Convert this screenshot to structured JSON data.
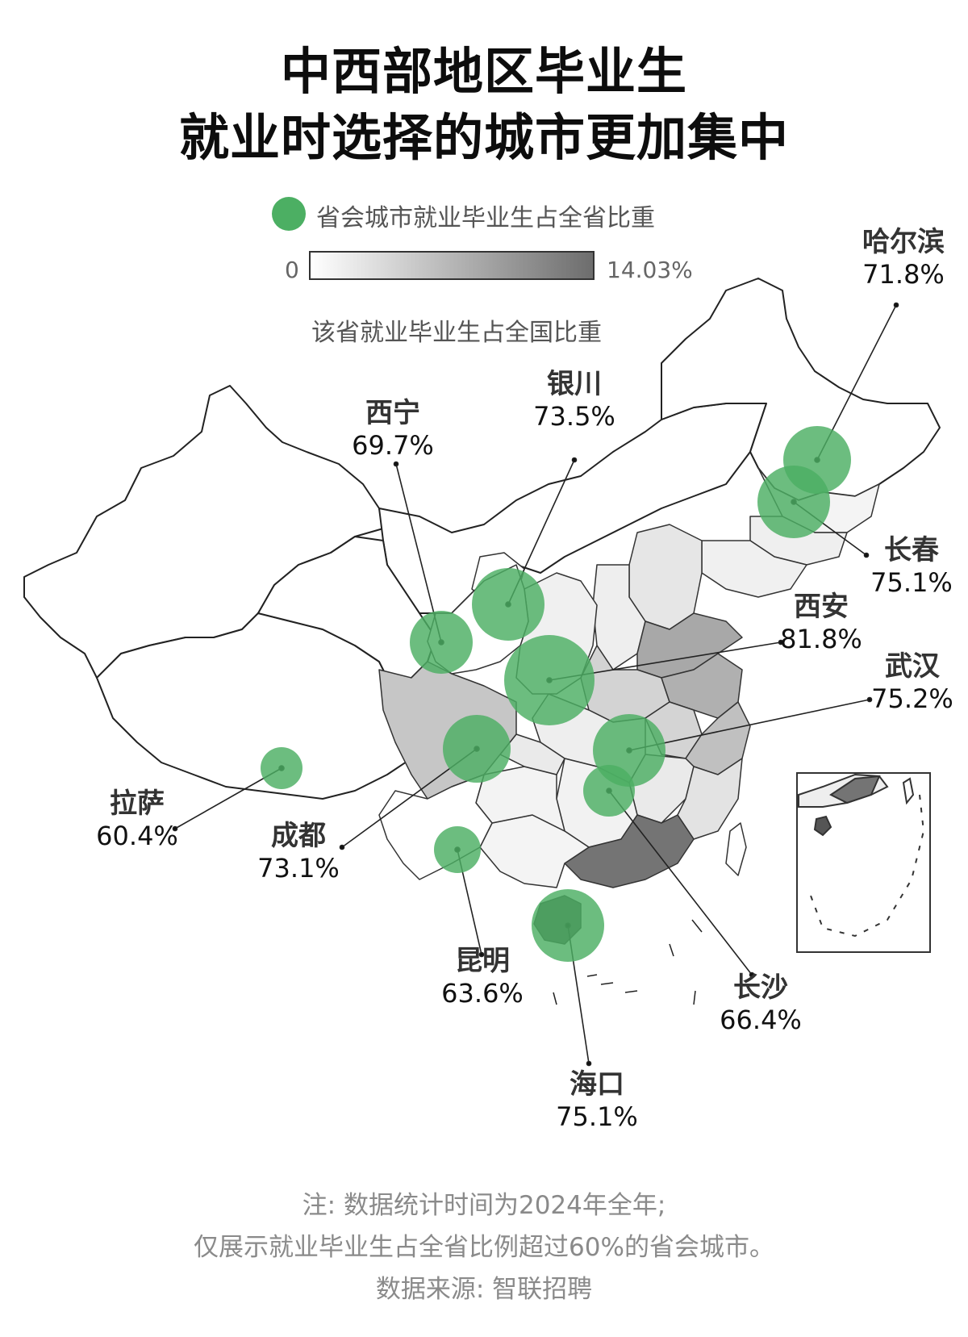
{
  "title": {
    "line1": "中西部地区毕业生",
    "line2": "就业时选择的城市更加集中"
  },
  "legend": {
    "circle_label": "省会城市就业毕业生占全省比重",
    "circle_color": "#4caf63",
    "scale_min": "0",
    "scale_max": "14.03%",
    "scale_label": "该省就业毕业生占全国比重",
    "scale_color_low": "#ffffff",
    "scale_color_high": "#6d6d6d"
  },
  "cities": [
    {
      "name": "哈尔滨",
      "value": "71.8%"
    },
    {
      "name": "长春",
      "value": "75.1%"
    },
    {
      "name": "银川",
      "value": "73.5%"
    },
    {
      "name": "西宁",
      "value": "69.7%"
    },
    {
      "name": "西安",
      "value": "81.8%"
    },
    {
      "name": "武汉",
      "value": "75.2%"
    },
    {
      "name": "拉萨",
      "value": "60.4%"
    },
    {
      "name": "成都",
      "value": "73.1%"
    },
    {
      "name": "昆明",
      "value": "63.6%"
    },
    {
      "name": "长沙",
      "value": "66.4%"
    },
    {
      "name": "海口",
      "value": "75.1%"
    }
  ],
  "notes": {
    "line1": "注: 数据统计时间为2024年全年;",
    "line2": "仅展示就业毕业生占全省比例超过60%的省会城市。",
    "source": "数据来源: 智联招聘"
  }
}
